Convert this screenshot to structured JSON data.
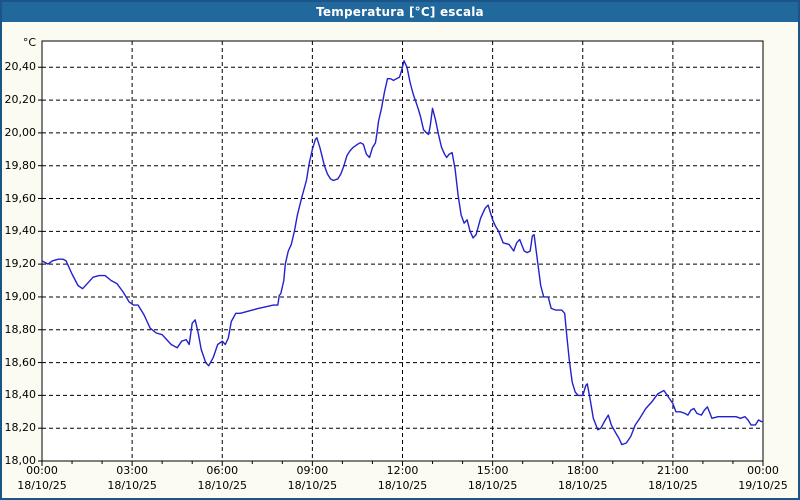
{
  "window": {
    "title": "Temperatura [°C] escala",
    "title_bar_color": "#21689D",
    "border_color": "#1B5488",
    "background_color": "#FBFBF1"
  },
  "chart_data": {
    "type": "line",
    "title": "Temperatura [°C] escala",
    "unit_label": "°C",
    "line_color": "#2222CC",
    "plot_background": "#FFFFFF",
    "grid": "dashed black, horizontal every 0.20 °C, vertical every 3 h",
    "legend_position": "none",
    "ylim": [
      18.0,
      20.4
    ],
    "xlim_hours": [
      0,
      24
    ],
    "x_minor_tick_hours": 1,
    "y_ticks": [
      {
        "value": 18.0,
        "label": "18,00"
      },
      {
        "value": 18.2,
        "label": "18,20"
      },
      {
        "value": 18.4,
        "label": "18,40"
      },
      {
        "value": 18.6,
        "label": "18,60"
      },
      {
        "value": 18.8,
        "label": "18,80"
      },
      {
        "value": 19.0,
        "label": "19,00"
      },
      {
        "value": 19.2,
        "label": "19,20"
      },
      {
        "value": 19.4,
        "label": "19,40"
      },
      {
        "value": 19.6,
        "label": "19,60"
      },
      {
        "value": 19.8,
        "label": "19,80"
      },
      {
        "value": 20.0,
        "label": "20,00"
      },
      {
        "value": 20.2,
        "label": "20,20"
      },
      {
        "value": 20.4,
        "label": "20,40"
      }
    ],
    "x_ticks": [
      {
        "hour": 0,
        "time": "00:00",
        "date": "18/10/25"
      },
      {
        "hour": 3,
        "time": "03:00",
        "date": "18/10/25"
      },
      {
        "hour": 6,
        "time": "06:00",
        "date": "18/10/25"
      },
      {
        "hour": 9,
        "time": "09:00",
        "date": "18/10/25"
      },
      {
        "hour": 12,
        "time": "12:00",
        "date": "18/10/25"
      },
      {
        "hour": 15,
        "time": "15:00",
        "date": "18/10/25"
      },
      {
        "hour": 18,
        "time": "18:00",
        "date": "18/10/25"
      },
      {
        "hour": 21,
        "time": "21:00",
        "date": "18/10/25"
      },
      {
        "hour": 24,
        "time": "00:00",
        "date": "19/10/25"
      }
    ],
    "series": [
      {
        "name": "Temperatura",
        "x": [
          0.0,
          0.1,
          0.2,
          0.35,
          0.55,
          0.7,
          0.8,
          1.0,
          1.2,
          1.35,
          1.5,
          1.7,
          1.9,
          2.1,
          2.3,
          2.5,
          2.7,
          2.9,
          3.05,
          3.2,
          3.4,
          3.6,
          3.8,
          4.0,
          4.15,
          4.3,
          4.5,
          4.65,
          4.8,
          4.9,
          5.0,
          5.1,
          5.2,
          5.3,
          5.45,
          5.55,
          5.7,
          5.85,
          6.0,
          6.1,
          6.2,
          6.3,
          6.45,
          6.6,
          6.8,
          7.0,
          7.2,
          7.45,
          7.7,
          7.85,
          7.9,
          7.95,
          8.05,
          8.1,
          8.2,
          8.3,
          8.4,
          8.5,
          8.65,
          8.8,
          8.9,
          9.0,
          9.1,
          9.15,
          9.25,
          9.4,
          9.5,
          9.6,
          9.7,
          9.85,
          9.95,
          10.05,
          10.15,
          10.25,
          10.35,
          10.5,
          10.6,
          10.7,
          10.8,
          10.9,
          11.0,
          11.1,
          11.15,
          11.2,
          11.3,
          11.4,
          11.5,
          11.6,
          11.7,
          11.8,
          11.9,
          11.97,
          12.05,
          12.15,
          12.25,
          12.35,
          12.5,
          12.6,
          12.7,
          12.8,
          12.87,
          12.93,
          13.0,
          13.1,
          13.2,
          13.3,
          13.4,
          13.47,
          13.55,
          13.65,
          13.75,
          13.85,
          13.95,
          14.05,
          14.15,
          14.25,
          14.35,
          14.45,
          14.6,
          14.75,
          14.85,
          15.0,
          15.1,
          15.2,
          15.35,
          15.55,
          15.7,
          15.8,
          15.9,
          16.05,
          16.15,
          16.25,
          16.32,
          16.38,
          16.5,
          16.6,
          16.7,
          16.85,
          16.95,
          17.1,
          17.3,
          17.4,
          17.45,
          17.55,
          17.65,
          17.75,
          17.85,
          18.0,
          18.1,
          18.15,
          18.25,
          18.35,
          18.5,
          18.6,
          18.75,
          18.85,
          18.95,
          19.1,
          19.2,
          19.3,
          19.45,
          19.6,
          19.75,
          19.9,
          20.1,
          20.3,
          20.5,
          20.7,
          20.85,
          21.0,
          21.1,
          21.25,
          21.4,
          21.5,
          21.6,
          21.7,
          21.8,
          21.95,
          22.05,
          22.15,
          22.3,
          22.5,
          22.7,
          22.9,
          23.1,
          23.25,
          23.4,
          23.5,
          23.6,
          23.75,
          23.85,
          23.95,
          24.0
        ],
        "y": [
          19.22,
          19.21,
          19.2,
          19.22,
          19.23,
          19.23,
          19.22,
          19.14,
          19.07,
          19.05,
          19.08,
          19.12,
          19.13,
          19.13,
          19.1,
          19.08,
          19.03,
          18.97,
          18.95,
          18.95,
          18.89,
          18.81,
          18.78,
          18.77,
          18.74,
          18.71,
          18.69,
          18.73,
          18.74,
          18.71,
          18.84,
          18.86,
          18.78,
          18.68,
          18.6,
          18.58,
          18.63,
          18.71,
          18.73,
          18.71,
          18.75,
          18.85,
          18.9,
          18.9,
          18.91,
          18.92,
          18.93,
          18.94,
          18.95,
          18.95,
          19.01,
          19.02,
          19.1,
          19.2,
          19.28,
          19.32,
          19.4,
          19.5,
          19.61,
          19.71,
          19.82,
          19.9,
          19.96,
          19.97,
          19.91,
          19.8,
          19.75,
          19.72,
          19.71,
          19.72,
          19.75,
          19.8,
          19.86,
          19.89,
          19.91,
          19.93,
          19.94,
          19.93,
          19.87,
          19.85,
          19.91,
          19.94,
          20.0,
          20.07,
          20.15,
          20.25,
          20.33,
          20.33,
          20.32,
          20.33,
          20.34,
          20.38,
          20.44,
          20.4,
          20.31,
          20.24,
          20.16,
          20.1,
          20.02,
          20.0,
          19.99,
          20.05,
          20.15,
          20.08,
          19.99,
          19.91,
          19.87,
          19.85,
          19.87,
          19.88,
          19.78,
          19.62,
          19.5,
          19.45,
          19.47,
          19.4,
          19.36,
          19.38,
          19.48,
          19.54,
          19.56,
          19.47,
          19.43,
          19.4,
          19.33,
          19.32,
          19.28,
          19.33,
          19.35,
          19.28,
          19.27,
          19.28,
          19.37,
          19.38,
          19.21,
          19.07,
          19.0,
          19.0,
          18.93,
          18.92,
          18.92,
          18.9,
          18.8,
          18.62,
          18.48,
          18.42,
          18.4,
          18.4,
          18.46,
          18.47,
          18.37,
          18.26,
          18.19,
          18.2,
          18.25,
          18.28,
          18.22,
          18.17,
          18.14,
          18.1,
          18.11,
          18.15,
          18.22,
          18.26,
          18.32,
          18.36,
          18.41,
          18.43,
          18.39,
          18.35,
          18.3,
          18.3,
          18.29,
          18.28,
          18.31,
          18.32,
          18.29,
          18.28,
          18.31,
          18.33,
          18.26,
          18.27,
          18.27,
          18.27,
          18.27,
          18.26,
          18.27,
          18.25,
          18.22,
          18.22,
          18.25,
          18.24,
          18.24
        ]
      }
    ]
  }
}
